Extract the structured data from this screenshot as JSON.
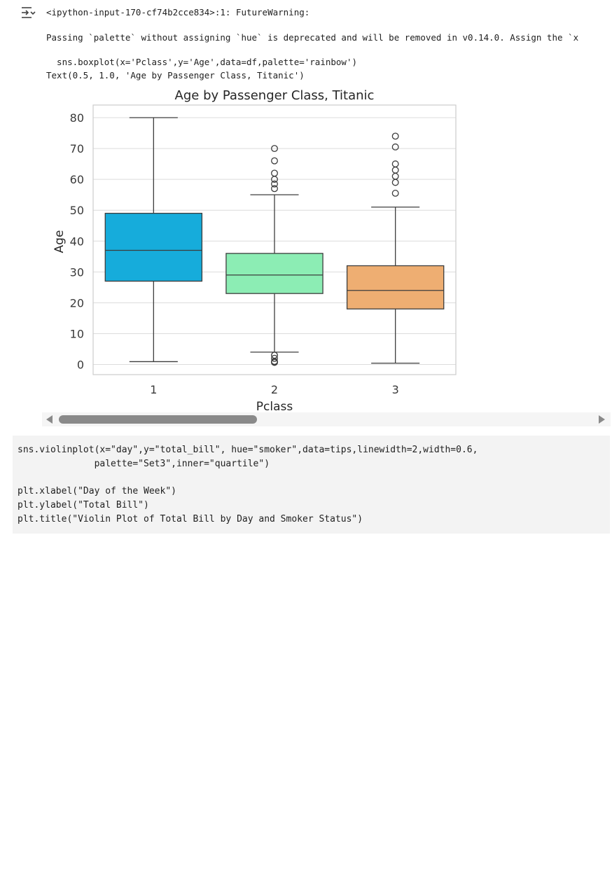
{
  "output": {
    "icon": "output-toggle-icon",
    "warning_header": "<ipython-input-170-cf74b2cce834>:1: FutureWarning:",
    "warning_message": "Passing `palette` without assigning `hue` is deprecated and will be removed in v0.14.0. Assign the `x",
    "code_echo": "  sns.boxplot(x='Pclass',y='Age',data=df,palette='rainbow')",
    "text_result": "Text(0.5, 1.0, 'Age by Passenger Class, Titanic')"
  },
  "chart_data": {
    "type": "box",
    "title": "Age by Passenger Class, Titanic",
    "xlabel": "Pclass",
    "ylabel": "Age",
    "categories": [
      "1",
      "2",
      "3"
    ],
    "ylim": [
      -3,
      84
    ],
    "yticks": [
      0,
      10,
      20,
      30,
      40,
      50,
      60,
      70,
      80
    ],
    "grid": true,
    "boxes": [
      {
        "category": "1",
        "whisker_low": 0.92,
        "q1": 27,
        "median": 37,
        "q3": 49,
        "whisker_high": 80,
        "outliers": [],
        "color": "#16acdb"
      },
      {
        "category": "2",
        "whisker_low": 4,
        "q1": 23,
        "median": 29,
        "q3": 36,
        "whisker_high": 55,
        "outliers": [
          0.67,
          0.83,
          1,
          2,
          3,
          57,
          58.5,
          60,
          62,
          66,
          70
        ],
        "color": "#8cedb4"
      },
      {
        "category": "3",
        "whisker_low": 0.42,
        "q1": 18,
        "median": 24,
        "q3": 32,
        "whisker_high": 51,
        "outliers": [
          55.5,
          59,
          61,
          63,
          65,
          70.5,
          74
        ],
        "color": "#eeae72"
      }
    ]
  },
  "scrollbar": {
    "position_fraction": 0.0,
    "visible_fraction": 0.37
  },
  "code": {
    "lines": [
      "sns.violinplot(x=\"day\",y=\"total_bill\", hue=\"smoker\",data=tips,linewidth=2,width=0.6,",
      "              palette=\"Set3\",inner=\"quartile\")",
      "",
      "plt.xlabel(\"Day of the Week\")",
      "plt.ylabel(\"Total Bill\")",
      "plt.title(\"Violin Plot of Total Bill by Day and Smoker Status\")"
    ]
  }
}
